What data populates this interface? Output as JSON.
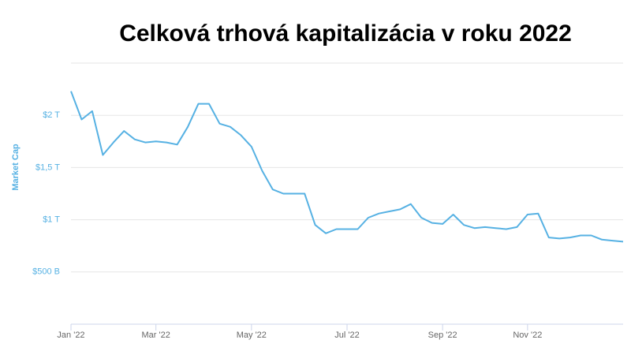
{
  "chart_data": {
    "type": "line",
    "title": "Celková trhová kapitalizácia v roku 2022",
    "y_label": "Market Cap",
    "categories": [
      "Jan '22",
      null,
      null,
      null,
      null,
      null,
      null,
      null,
      "Mar '22",
      null,
      null,
      null,
      null,
      null,
      null,
      null,
      null,
      "May '22",
      null,
      null,
      null,
      null,
      null,
      null,
      null,
      null,
      "Jul '22",
      null,
      null,
      null,
      null,
      null,
      null,
      null,
      null,
      "Sep '22",
      null,
      null,
      null,
      null,
      null,
      null,
      null,
      "Nov '22",
      null,
      null,
      null,
      null,
      null,
      null,
      null,
      null,
      null
    ],
    "series": [
      {
        "name": "Market Cap",
        "color": "#56b1e3",
        "values": [
          2.23,
          1.96,
          2.04,
          1.62,
          1.74,
          1.85,
          1.77,
          1.74,
          1.75,
          1.74,
          1.72,
          1.89,
          2.11,
          2.11,
          1.92,
          1.89,
          1.81,
          1.7,
          1.47,
          1.29,
          1.25,
          1.25,
          1.25,
          0.95,
          0.87,
          0.91,
          0.91,
          0.91,
          1.02,
          1.06,
          1.08,
          1.1,
          1.15,
          1.02,
          0.97,
          0.96,
          1.05,
          0.95,
          0.92,
          0.93,
          0.92,
          0.91,
          0.93,
          1.05,
          1.06,
          0.83,
          0.82,
          0.83,
          0.85,
          0.85,
          0.81,
          0.8,
          0.79
        ]
      }
    ],
    "ylim": [
      0,
      2.5
    ],
    "yticks": [
      {
        "value": 0.5,
        "label": "$500 B"
      },
      {
        "value": 1,
        "label": "$1 T"
      },
      {
        "value": 1.5,
        "label": "$1,5 T"
      },
      {
        "value": 2,
        "label": "$2 T"
      }
    ],
    "grid": true
  }
}
